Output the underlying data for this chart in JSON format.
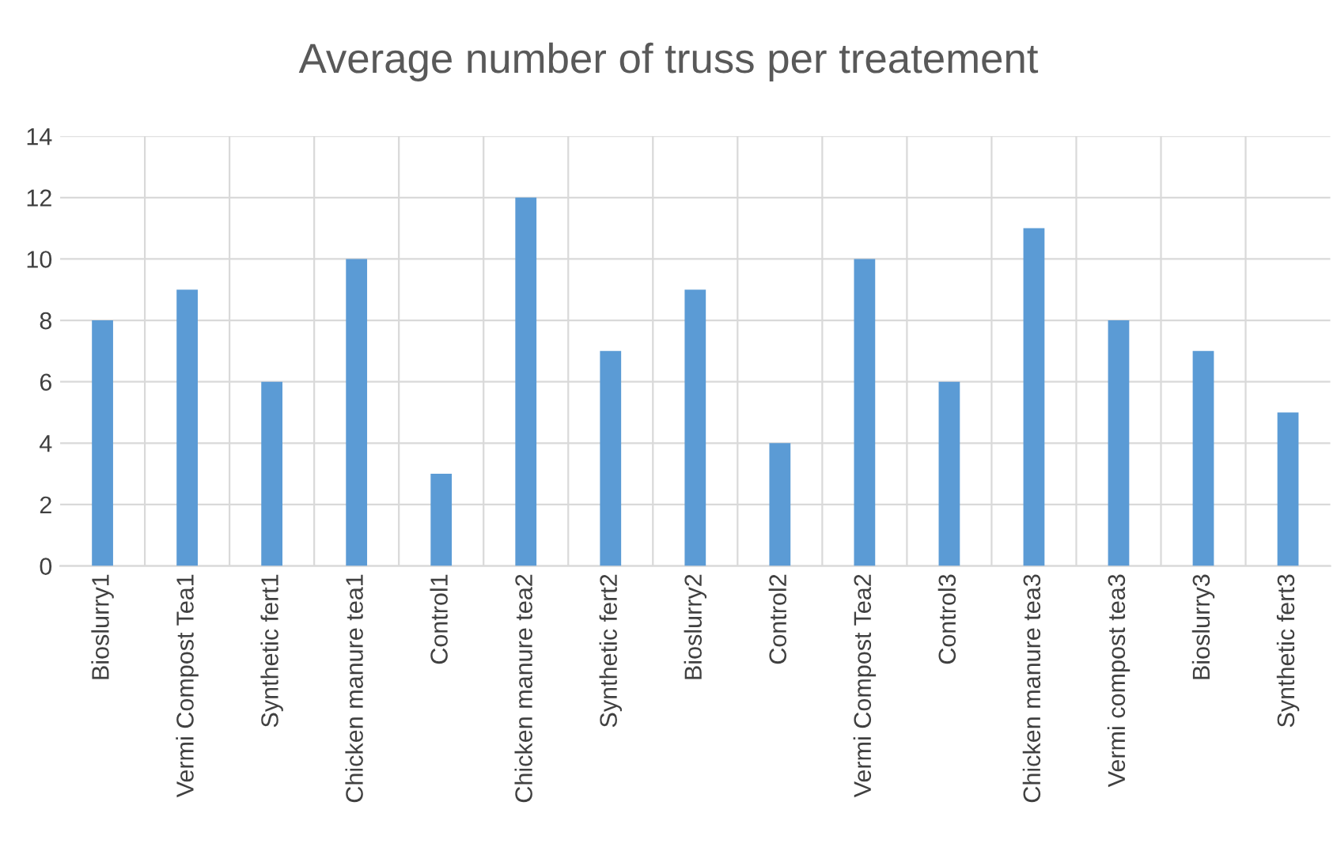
{
  "chart_data": {
    "type": "bar",
    "title": "Average number of truss per treatement",
    "categories": [
      "Bioslurry1",
      "Vermi Compost Tea1",
      "Synthetic fert1",
      "Chicken manure tea1",
      "Control1",
      "Chicken manure tea2",
      "Synthetic fert2",
      "Bioslurry2",
      "Control2",
      "Vermi Compost Tea2",
      "Control3",
      "Chicken manure tea3",
      "Vermi compost tea3",
      "Bioslurry3",
      "Synthetic fert3"
    ],
    "values": [
      8,
      9,
      6,
      10,
      3,
      12,
      7,
      9,
      4,
      10,
      6,
      11,
      8,
      7,
      5
    ],
    "color": "#5b9bd5",
    "ylim": [
      0,
      14
    ],
    "yticks": [
      0,
      2,
      4,
      6,
      8,
      10,
      12,
      14
    ],
    "grid": true
  }
}
